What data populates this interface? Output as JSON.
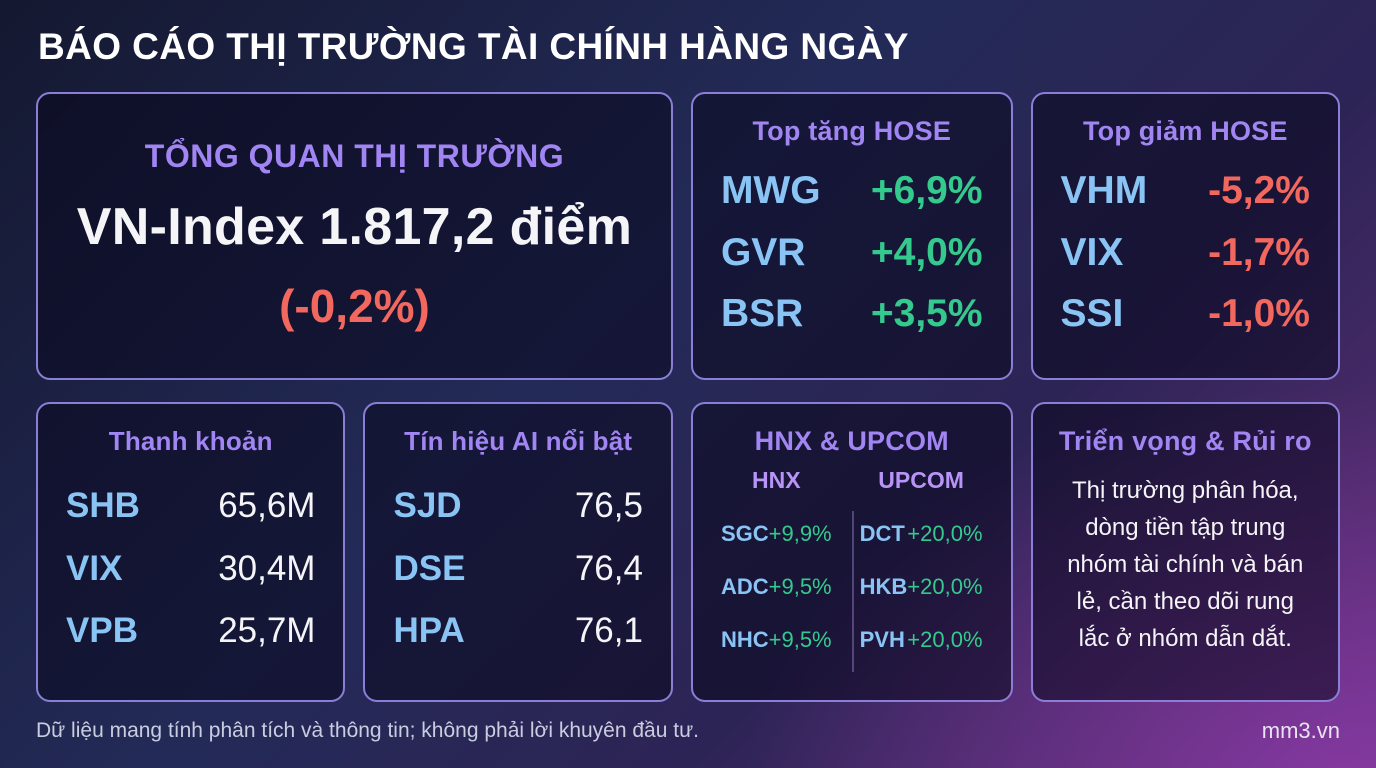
{
  "page": {
    "title": "BÁO CÁO THỊ TRƯỜNG TÀI CHÍNH HÀNG NGÀY",
    "footer": {
      "disclaimer": "Dữ liệu mang tính phân tích và thông tin; không phải lời khuyên đầu tư.",
      "brand": "mm3.vn"
    }
  },
  "colors": {
    "c-purple": "#a185f2",
    "c-purple-sub": "#b794f6",
    "c-blue": "#8ac4f4",
    "c-green": "#35ca8d",
    "c-red": "#f2685e",
    "c-white": "#f5f5f8",
    "c-border": "#8a7ed6",
    "c-footer": "#c9cde0"
  },
  "cards": {
    "overview": {
      "title": "TỔNG QUAN THỊ TRƯỜNG",
      "index_line": "VN-Index 1.817,2 điểm",
      "change": "(-0,2%)"
    },
    "top_gainers": {
      "title": "Top tăng HOSE",
      "rows": [
        {
          "ticker": "MWG",
          "value": "+6,9%"
        },
        {
          "ticker": "GVR",
          "value": "+4,0%"
        },
        {
          "ticker": "BSR",
          "value": "+3,5%"
        }
      ]
    },
    "top_losers": {
      "title": "Top giảm HOSE",
      "rows": [
        {
          "ticker": "VHM",
          "value": "-5,2%"
        },
        {
          "ticker": "VIX",
          "value": "-1,7%"
        },
        {
          "ticker": "SSI",
          "value": "-1,0%"
        }
      ]
    },
    "liquidity": {
      "title": "Thanh khoản",
      "rows": [
        {
          "ticker": "SHB",
          "value": "65,6M"
        },
        {
          "ticker": "VIX",
          "value": "30,4M"
        },
        {
          "ticker": "VPB",
          "value": "25,7M"
        }
      ]
    },
    "ai_signals": {
      "title": "Tín hiệu AI nổi bật",
      "rows": [
        {
          "ticker": "SJD",
          "value": "76,5"
        },
        {
          "ticker": "DSE",
          "value": "76,4"
        },
        {
          "ticker": "HPA",
          "value": "76,1"
        }
      ]
    },
    "hnx_upcom": {
      "title": "HNX & UPCOM",
      "columns": [
        {
          "header": "HNX",
          "rows": [
            {
              "ticker": "SGC",
              "value": "+9,9%"
            },
            {
              "ticker": "ADC",
              "value": "+9,5%"
            },
            {
              "ticker": "NHC",
              "value": "+9,5%"
            }
          ]
        },
        {
          "header": "UPCOM",
          "rows": [
            {
              "ticker": "DCT",
              "value": "+20,0%"
            },
            {
              "ticker": "HKB",
              "value": "+20,0%"
            },
            {
              "ticker": "PVH",
              "value": "+20,0%"
            }
          ]
        }
      ]
    },
    "outlook": {
      "title": "Triển vọng & Rủi ro",
      "body": "Thị trường phân hóa, dòng tiền tập trung nhóm tài chính và bán lẻ, cần theo dõi rung lắc ở nhóm dẫn dắt."
    }
  }
}
